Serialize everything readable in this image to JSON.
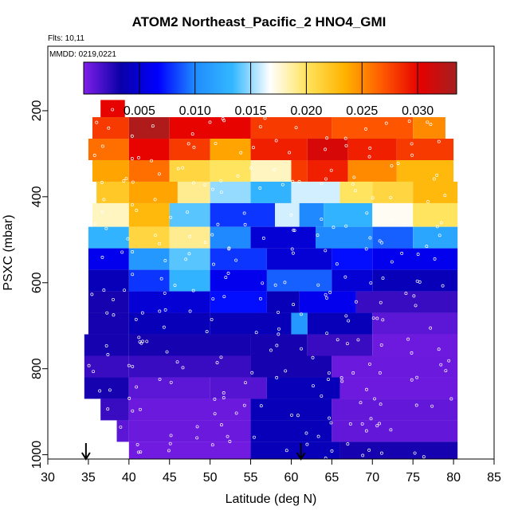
{
  "title": "ATOM2 Northeast_Pacific_2 HNO4_GMI",
  "flights_note": "Flts: 10,11",
  "date_note": "MMDD: 0219,0221",
  "chart_data": {
    "type": "heatmap",
    "xlabel": "Latitude (deg N)",
    "ylabel": "PSXC (mbar)",
    "xlim": [
      30,
      85
    ],
    "ylim": [
      1010,
      50
    ],
    "y_reversed": true,
    "x_ticks": [
      "30",
      "35",
      "40",
      "45",
      "50",
      "55",
      "60",
      "65",
      "70",
      "75",
      "80",
      "85"
    ],
    "y_ticks": [
      "200",
      "400",
      "600",
      "800",
      "1000"
    ],
    "colorbar": {
      "range": [
        0.0,
        0.0335
      ],
      "ticks": [
        "0.005",
        "0.010",
        "0.015",
        "0.020",
        "0.025",
        "0.030"
      ],
      "colors": [
        "#7f1fe8",
        "#0a00a8",
        "#0000ff",
        "#1f8cff",
        "#34b8ff",
        "#ffffff",
        "#ffe35a",
        "#ffb300",
        "#ff5a00",
        "#e60000",
        "#a52020"
      ]
    },
    "markers_note": "vertical arrows mark flight start/end latitudes",
    "arrows": [
      34.7,
      61.2
    ],
    "pressure_bins": [
      {
        "p": [
          175,
          215
        ],
        "cells": [
          [
            36.5,
            39.5,
            0.03
          ]
        ]
      },
      {
        "p": [
          215,
          265
        ],
        "cells": [
          [
            35.5,
            40,
            0.028
          ],
          [
            40,
            45,
            0.033
          ],
          [
            45,
            55,
            0.03
          ],
          [
            55,
            65,
            0.028
          ],
          [
            65,
            75,
            0.027
          ],
          [
            75,
            79,
            0.025
          ]
        ]
      },
      {
        "p": [
          265,
          315
        ],
        "cells": [
          [
            35,
            40,
            0.026
          ],
          [
            40,
            45,
            0.03
          ],
          [
            45,
            50,
            0.028
          ],
          [
            50,
            55,
            0.024
          ],
          [
            55,
            62,
            0.029
          ],
          [
            62,
            67,
            0.031
          ],
          [
            67,
            73,
            0.029
          ],
          [
            73,
            80,
            0.028
          ]
        ]
      },
      {
        "p": [
          315,
          365
        ],
        "cells": [
          [
            35.5,
            40,
            0.024
          ],
          [
            40,
            45,
            0.026
          ],
          [
            45,
            50,
            0.021
          ],
          [
            50,
            55,
            0.02
          ],
          [
            55,
            60,
            0.018
          ],
          [
            60,
            62,
            0.028
          ],
          [
            62,
            67,
            0.029
          ],
          [
            67,
            73,
            0.025
          ],
          [
            73,
            80,
            0.023
          ]
        ]
      },
      {
        "p": [
          365,
          415
        ],
        "cells": [
          [
            36,
            40,
            0.022
          ],
          [
            40,
            46,
            0.024
          ],
          [
            46,
            50,
            0.019
          ],
          [
            50,
            55,
            0.015
          ],
          [
            55,
            60,
            0.013
          ],
          [
            60,
            66,
            0.016
          ],
          [
            66,
            70,
            0.02
          ],
          [
            70,
            75,
            0.021
          ],
          [
            75,
            80.5,
            0.023
          ]
        ]
      },
      {
        "p": [
          415,
          470
        ],
        "cells": [
          [
            35.5,
            40,
            0.018
          ],
          [
            40,
            45,
            0.023
          ],
          [
            45,
            50,
            0.014
          ],
          [
            50,
            58,
            0.008
          ],
          [
            58,
            61,
            0.016
          ],
          [
            61,
            64,
            0.01
          ],
          [
            64,
            70,
            0.013
          ],
          [
            70,
            75,
            0.017
          ],
          [
            75,
            80.5,
            0.02
          ]
        ]
      },
      {
        "p": [
          470,
          520
        ],
        "cells": [
          [
            35,
            40,
            0.013
          ],
          [
            40,
            45,
            0.021
          ],
          [
            45,
            50,
            0.019
          ],
          [
            50,
            55,
            0.01
          ],
          [
            55,
            63,
            0.005
          ],
          [
            63,
            70,
            0.01
          ],
          [
            70,
            75,
            0.009
          ],
          [
            75,
            80.5,
            0.012
          ]
        ]
      },
      {
        "p": [
          520,
          570
        ],
        "cells": [
          [
            35,
            40,
            0.006
          ],
          [
            40,
            45,
            0.011
          ],
          [
            45,
            50,
            0.014
          ],
          [
            50,
            57,
            0.008
          ],
          [
            57,
            65,
            0.005
          ],
          [
            65,
            70,
            0.007
          ],
          [
            70,
            80.5,
            0.006
          ]
        ]
      },
      {
        "p": [
          570,
          620
        ],
        "cells": [
          [
            35,
            40,
            0.004
          ],
          [
            40,
            45,
            0.008
          ],
          [
            45,
            50,
            0.013
          ],
          [
            50,
            57,
            0.006
          ],
          [
            57,
            65,
            0.009
          ],
          [
            65,
            70,
            0.005
          ],
          [
            70,
            80.5,
            0.004
          ]
        ]
      },
      {
        "p": [
          620,
          670
        ],
        "cells": [
          [
            35,
            40,
            0.003
          ],
          [
            40,
            50,
            0.005
          ],
          [
            50,
            57,
            0.007
          ],
          [
            57,
            61,
            0.004
          ],
          [
            61,
            68,
            0.006
          ],
          [
            68,
            80.5,
            0.002
          ]
        ]
      },
      {
        "p": [
          670,
          720
        ],
        "cells": [
          [
            35,
            40,
            0.003
          ],
          [
            40,
            50,
            0.004
          ],
          [
            50,
            60,
            0.004
          ],
          [
            60,
            62,
            0.011
          ],
          [
            62,
            70,
            0.004
          ],
          [
            70,
            80.5,
            0.001
          ]
        ]
      },
      {
        "p": [
          720,
          770
        ],
        "cells": [
          [
            34.5,
            40,
            0.003
          ],
          [
            40,
            55,
            0.003
          ],
          [
            55,
            62,
            0.003
          ],
          [
            62,
            70,
            0.002
          ],
          [
            70,
            80.5,
            0.0005
          ]
        ]
      },
      {
        "p": [
          770,
          820
        ],
        "cells": [
          [
            34.5,
            40,
            0.002
          ],
          [
            40,
            55,
            0.002
          ],
          [
            55,
            65,
            0.003
          ],
          [
            65,
            80.5,
            0.0006
          ]
        ]
      },
      {
        "p": [
          820,
          870
        ],
        "cells": [
          [
            34.5,
            40,
            0.003
          ],
          [
            40,
            50,
            0.001
          ],
          [
            50,
            57,
            0.0012
          ],
          [
            57,
            66,
            0.004
          ],
          [
            66,
            80.5,
            0.0005
          ]
        ]
      },
      {
        "p": [
          870,
          920
        ],
        "cells": [
          [
            36.5,
            40,
            0.002
          ],
          [
            40,
            55,
            0.0006
          ],
          [
            55,
            65,
            0.004
          ],
          [
            65,
            80.5,
            0.0008
          ]
        ]
      },
      {
        "p": [
          920,
          970
        ],
        "cells": [
          [
            38.5,
            40,
            0.001
          ],
          [
            40,
            55,
            0.0006
          ],
          [
            55,
            65,
            0.004
          ],
          [
            65,
            80.5,
            0.0008
          ]
        ]
      },
      {
        "p": [
          970,
          1010
        ],
        "cells": [
          [
            40,
            55,
            0.0004
          ],
          [
            55,
            66,
            0.004
          ],
          [
            66,
            80.5,
            0.003
          ]
        ]
      }
    ]
  }
}
